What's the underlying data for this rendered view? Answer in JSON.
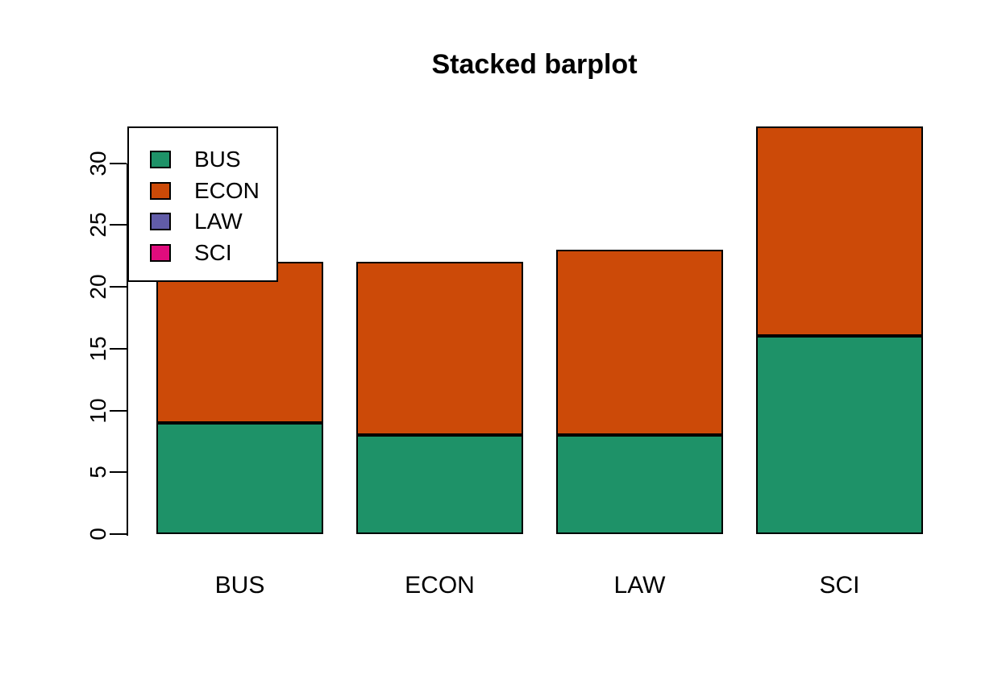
{
  "chart_data": {
    "type": "bar",
    "stacked": true,
    "title": "Stacked barplot",
    "categories": [
      "BUS",
      "ECON",
      "LAW",
      "SCI"
    ],
    "series": [
      {
        "name": "BUS",
        "color": "#1E9268",
        "values": [
          9,
          8,
          8,
          16
        ]
      },
      {
        "name": "ECON",
        "color": "#CC4A08",
        "values": [
          13,
          14,
          15,
          17
        ]
      },
      {
        "name": "LAW",
        "color": "#615CA8",
        "values": [
          0,
          0,
          0,
          0
        ]
      },
      {
        "name": "SCI",
        "color": "#E00C7D",
        "values": [
          0,
          0,
          0,
          0
        ]
      }
    ],
    "stack_totals": [
      22,
      22,
      23,
      33
    ],
    "xlabel": "",
    "ylabel": "",
    "yticks": [
      0,
      5,
      10,
      15,
      20,
      25,
      30
    ],
    "ylim": [
      0,
      33
    ],
    "grid": false,
    "legend": {
      "position": "top-left",
      "items": [
        "BUS",
        "ECON",
        "LAW",
        "SCI"
      ]
    },
    "bar_border_color": "#000000",
    "axis_color": "#000000",
    "text_color": "#000000",
    "background_color": "#FFFFFF"
  }
}
